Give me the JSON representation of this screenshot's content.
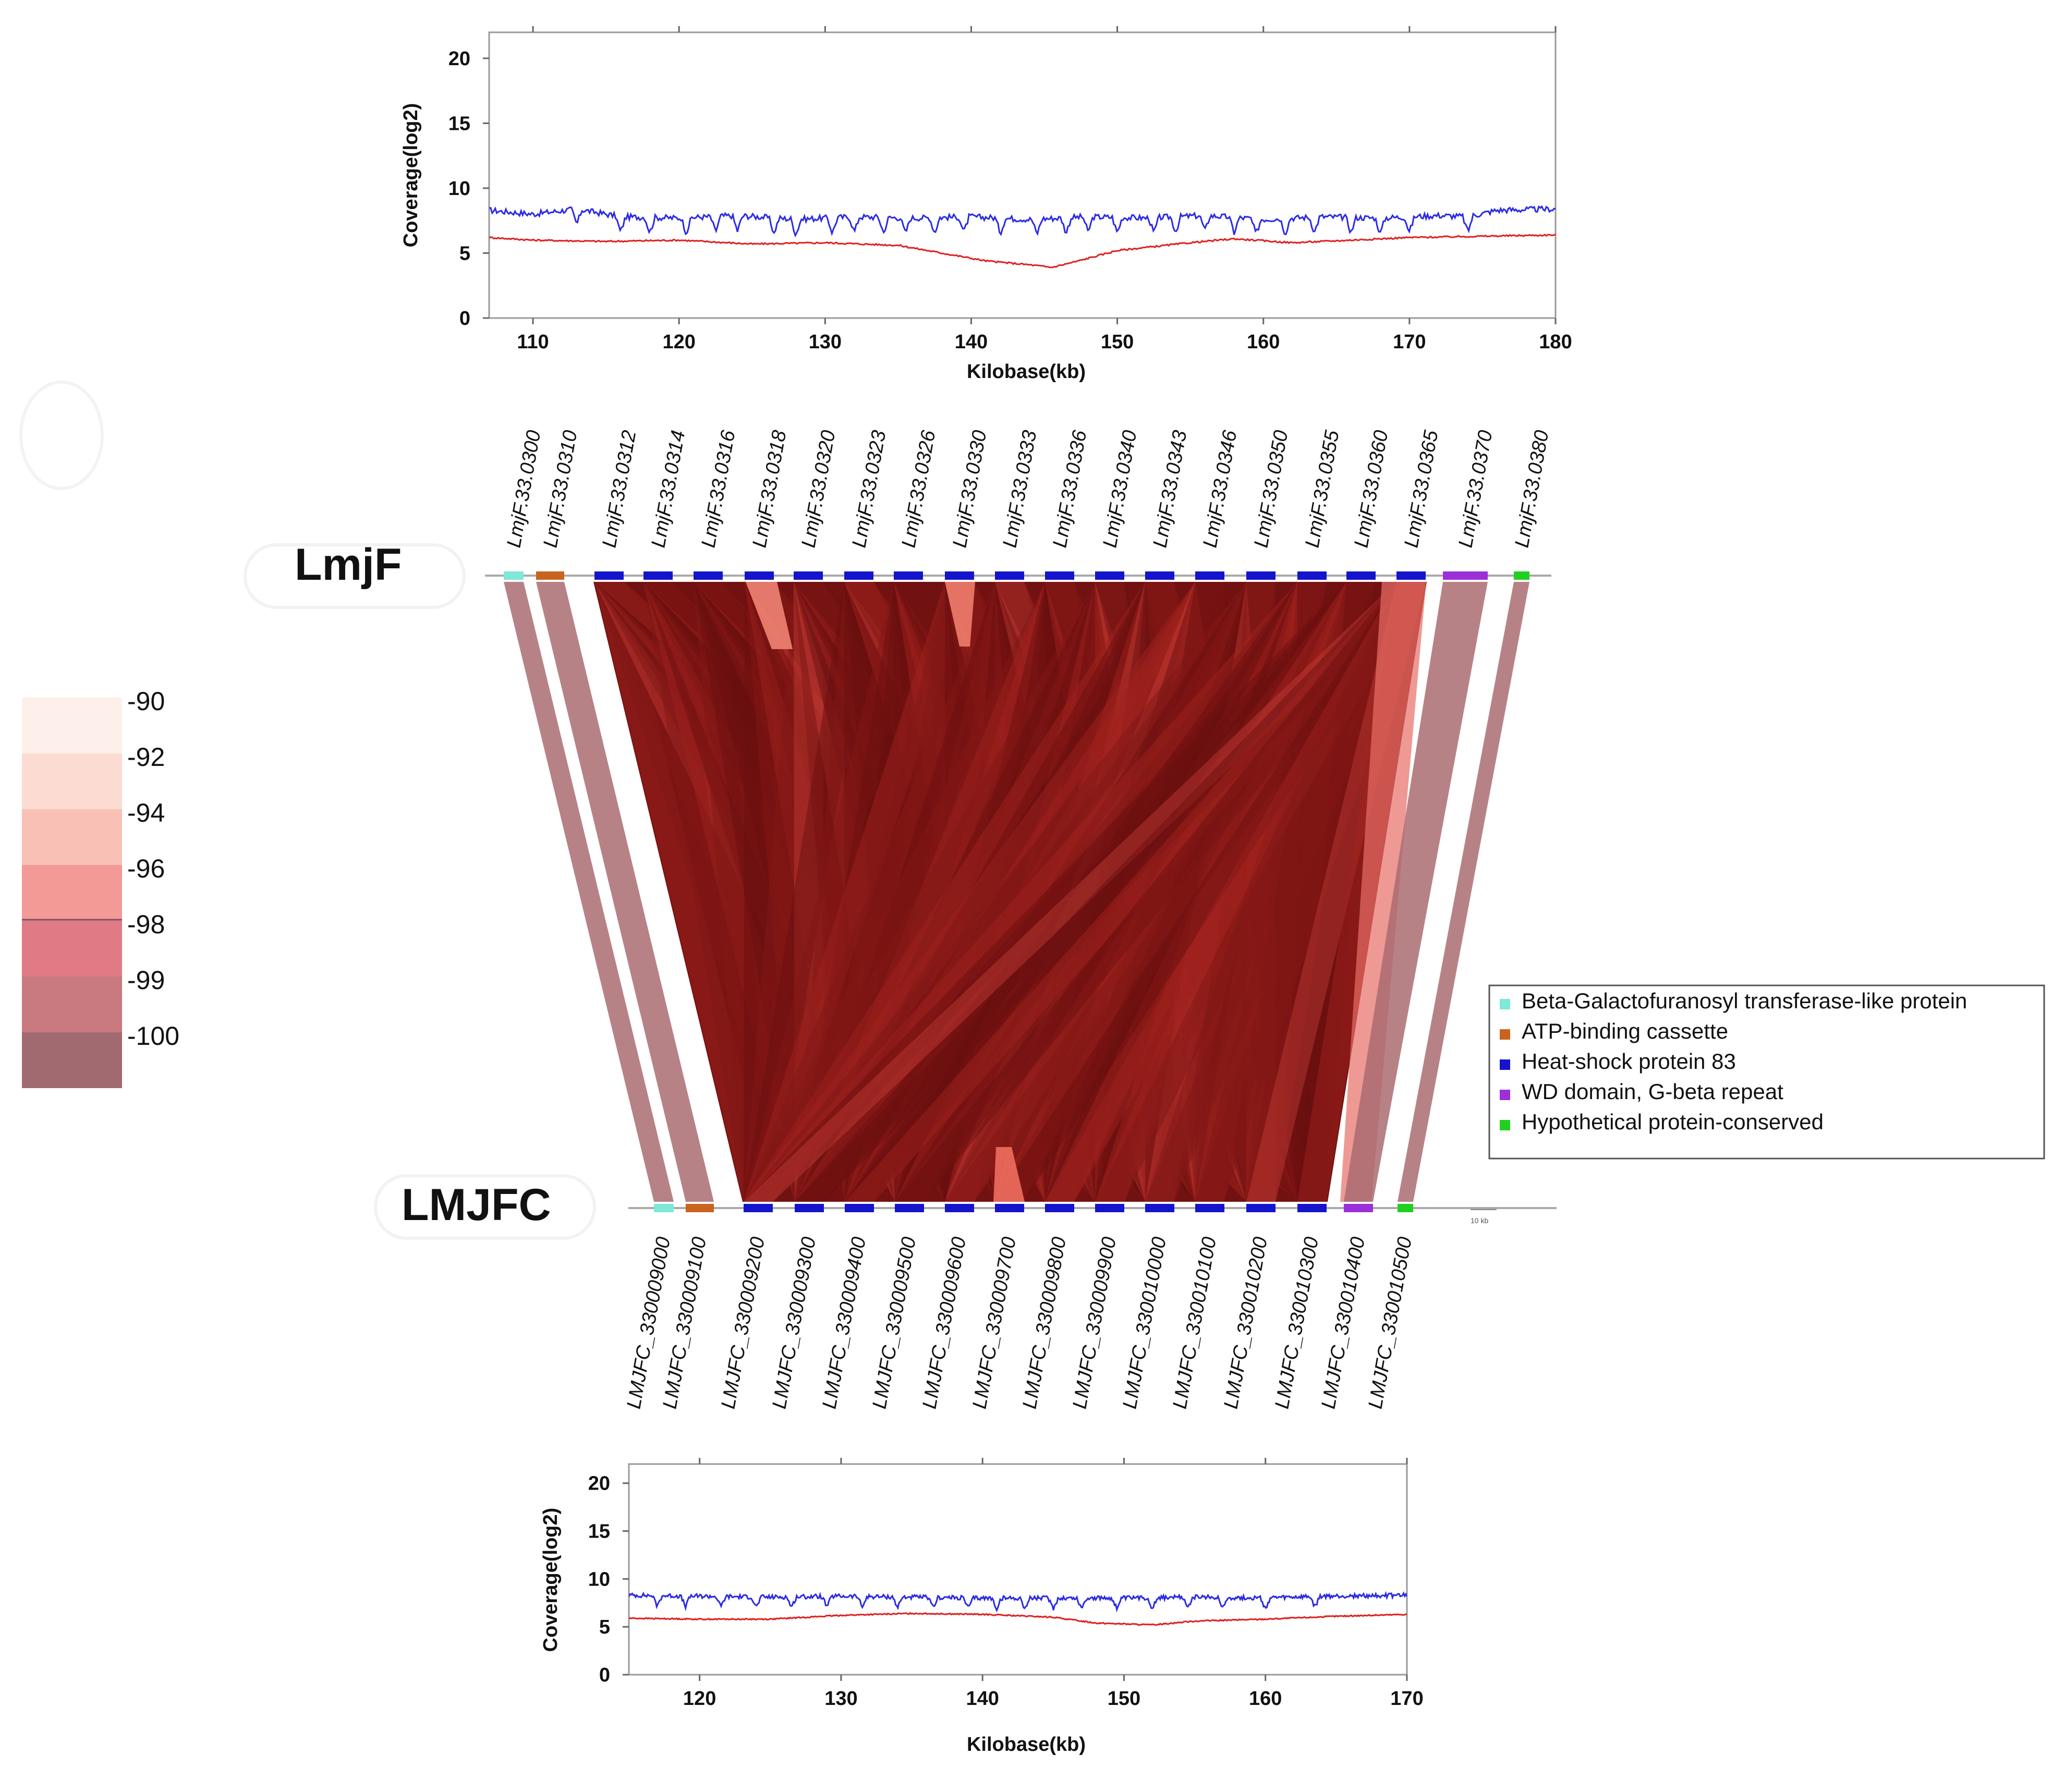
{
  "chart_data": [
    {
      "type": "line",
      "id": "coverage_top",
      "title": "",
      "xlabel": "Kilobase(kb)",
      "ylabel": "Coverage(log2)",
      "xlim": [
        107,
        180
      ],
      "ylim": [
        0,
        22
      ],
      "xticks": [
        110,
        120,
        130,
        140,
        150,
        160,
        170,
        180
      ],
      "yticks": [
        0,
        5,
        10,
        15,
        20
      ],
      "series": [
        {
          "name": "blue coverage",
          "color": "#2a2ae6",
          "x": [
            107,
            110,
            113,
            116,
            120,
            124,
            128,
            132,
            136,
            140,
            144,
            148,
            152,
            156,
            160,
            164,
            168,
            172,
            174,
            176,
            180
          ],
          "y": [
            8.3,
            8.0,
            8.4,
            7.8,
            7.7,
            7.9,
            7.6,
            7.8,
            7.7,
            7.8,
            7.6,
            7.8,
            7.7,
            7.9,
            7.6,
            7.8,
            7.7,
            7.9,
            7.8,
            8.3,
            8.4
          ]
        },
        {
          "name": "red coverage",
          "color": "#e02020",
          "x": [
            107,
            110,
            115,
            120,
            125,
            130,
            135,
            138,
            141,
            144,
            145.5,
            147,
            150,
            155,
            158,
            162,
            166,
            170,
            175,
            180
          ],
          "y": [
            6.2,
            6.0,
            5.9,
            6.0,
            5.7,
            5.8,
            5.6,
            5.0,
            4.4,
            4.1,
            3.9,
            4.3,
            5.2,
            5.8,
            6.1,
            5.8,
            6.0,
            6.2,
            6.3,
            6.4
          ]
        }
      ],
      "dips": {
        "blue_kb": [
          113,
          116,
          118,
          120.5,
          122.5,
          124,
          126.5,
          128,
          130.5,
          132,
          134,
          135.5,
          137.5,
          139.5,
          142,
          144.5,
          146.5,
          148,
          150,
          152.5,
          154,
          156,
          158,
          159.5,
          161.5,
          163.5,
          166,
          168,
          170,
          174
        ],
        "blue_depth": 1.2
      }
    },
    {
      "type": "line",
      "id": "coverage_bottom",
      "title": "",
      "xlabel": "Kilobase(kb)",
      "ylabel": "Coverage(log2)",
      "xlim": [
        115,
        170
      ],
      "ylim": [
        0,
        22
      ],
      "xticks": [
        120,
        130,
        140,
        150,
        160,
        170
      ],
      "yticks": [
        0,
        5,
        10,
        15,
        20
      ],
      "series": [
        {
          "name": "blue coverage",
          "color": "#2a2ae6",
          "x": [
            115,
            120,
            125,
            130,
            135,
            140,
            145,
            150,
            155,
            160,
            165,
            170
          ],
          "y": [
            8.3,
            8.2,
            8.1,
            8.2,
            8.1,
            8.0,
            8.0,
            8.0,
            8.1,
            8.0,
            8.2,
            8.3
          ]
        },
        {
          "name": "red coverage",
          "color": "#e02020",
          "x": [
            115,
            120,
            125,
            130,
            135,
            140,
            145,
            148,
            150,
            152,
            155,
            160,
            165,
            170
          ],
          "y": [
            5.9,
            5.8,
            5.8,
            6.2,
            6.4,
            6.3,
            6.0,
            5.4,
            5.3,
            5.2,
            5.6,
            5.8,
            6.1,
            6.3
          ]
        }
      ],
      "dips": {
        "blue_kb": [
          117,
          119,
          121.5,
          124,
          126.5,
          129,
          131.5,
          134,
          136.5,
          139,
          141,
          143,
          145,
          147,
          149.5,
          152,
          154.5,
          157,
          160,
          163.5
        ],
        "blue_depth": 1.1
      }
    },
    {
      "type": "synteny",
      "id": "synteny_map",
      "top_genome": "LmjF",
      "bottom_genome": "LMJFC",
      "scale_label": "10 kb",
      "identity_scale": {
        "labels": [
          "-90",
          "-92",
          "-94",
          "-96",
          "-98",
          "-99",
          "-100"
        ],
        "colors": [
          "#fdf0eb",
          "#fcdcd2",
          "#f9c1b5",
          "#f39996",
          "#e07a85",
          "#c97a80",
          "#a06a70"
        ]
      },
      "legend": [
        {
          "label": "Beta-Galactofuranosyl transferase-like protein",
          "color": "#7fe8d6"
        },
        {
          "label": "ATP-binding cassette",
          "color": "#c8641e"
        },
        {
          "label": "Heat-shock protein 83",
          "color": "#1414cc"
        },
        {
          "label": "WD domain, G-beta repeat",
          "color": "#9b30d8"
        },
        {
          "label": "Hypothetical protein-conserved",
          "color": "#20d020"
        }
      ],
      "top_genes": [
        {
          "id": "LmjF.33.0300",
          "class": 0
        },
        {
          "id": "LmjF.33.0310",
          "class": 1
        },
        {
          "id": "LmjF.33.0312",
          "class": 2
        },
        {
          "id": "LmjF.33.0314",
          "class": 2
        },
        {
          "id": "LmjF.33.0316",
          "class": 2
        },
        {
          "id": "LmjF.33.0318",
          "class": 2
        },
        {
          "id": "LmjF.33.0320",
          "class": 2
        },
        {
          "id": "LmjF.33.0323",
          "class": 2
        },
        {
          "id": "LmjF.33.0326",
          "class": 2
        },
        {
          "id": "LmjF.33.0330",
          "class": 2
        },
        {
          "id": "LmjF.33.0333",
          "class": 2
        },
        {
          "id": "LmjF.33.0336",
          "class": 2
        },
        {
          "id": "LmjF.33.0340",
          "class": 2
        },
        {
          "id": "LmjF.33.0343",
          "class": 2
        },
        {
          "id": "LmjF.33.0346",
          "class": 2
        },
        {
          "id": "LmjF.33.0350",
          "class": 2
        },
        {
          "id": "LmjF.33.0355",
          "class": 2
        },
        {
          "id": "LmjF.33.0360",
          "class": 2
        },
        {
          "id": "LmjF.33.0365",
          "class": 2
        },
        {
          "id": "LmjF.33.0370",
          "class": 3
        },
        {
          "id": "LmjF.33.0380",
          "class": 4
        }
      ],
      "bottom_genes": [
        {
          "id": "LMJFC_330009000",
          "class": 0
        },
        {
          "id": "LMJFC_330009100",
          "class": 1
        },
        {
          "id": "LMJFC_330009200",
          "class": 2
        },
        {
          "id": "LMJFC_330009300",
          "class": 2
        },
        {
          "id": "LMJFC_330009400",
          "class": 2
        },
        {
          "id": "LMJFC_330009500",
          "class": 2
        },
        {
          "id": "LMJFC_330009600",
          "class": 2
        },
        {
          "id": "LMJFC_330009700",
          "class": 2
        },
        {
          "id": "LMJFC_330009800",
          "class": 2
        },
        {
          "id": "LMJFC_330009900",
          "class": 2
        },
        {
          "id": "LMJFC_330010000",
          "class": 2
        },
        {
          "id": "LMJFC_330010100",
          "class": 2
        },
        {
          "id": "LMJFC_330010200",
          "class": 2
        },
        {
          "id": "LMJFC_330010300",
          "class": 2
        },
        {
          "id": "LMJFC_330010400",
          "class": 3
        },
        {
          "id": "LMJFC_330010500",
          "class": 4
        }
      ],
      "direct_links": [
        {
          "top": 0,
          "bottom": 0,
          "identity": -100
        },
        {
          "top": 1,
          "bottom": 1,
          "identity": -100
        },
        {
          "top": 19,
          "bottom": 14,
          "identity": -100
        },
        {
          "top": 20,
          "bottom": 15,
          "identity": -100
        }
      ],
      "hsp83_block": {
        "top_range": [
          2,
          18
        ],
        "bottom_range": [
          2,
          13
        ],
        "identity": -100
      }
    }
  ]
}
